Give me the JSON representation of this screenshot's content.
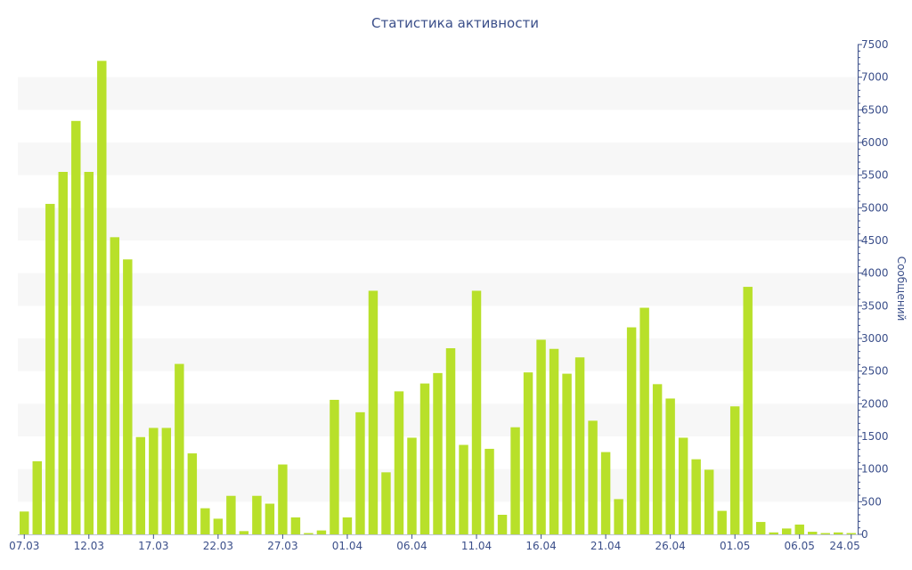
{
  "chart_data": {
    "type": "bar",
    "title": "Статистика активности",
    "xlabel": "",
    "ylabel": "Сообщений",
    "ylim": [
      0,
      7500
    ],
    "yticks": [
      0,
      500,
      1000,
      1500,
      2000,
      2500,
      3000,
      3500,
      4000,
      4500,
      5000,
      5500,
      6000,
      6500,
      7000,
      7500
    ],
    "y_axis_side": "right",
    "grid": "alternating horizontal bands",
    "bar_color": "#b8e02a",
    "band_color": "#f7f7f7",
    "text_color": "#3b4f8a",
    "x_tick_labels": [
      "07.03",
      "12.03",
      "17.03",
      "22.03",
      "27.03",
      "01.04",
      "06.04",
      "11.04",
      "16.04",
      "21.04",
      "26.04",
      "01.05",
      "06.05",
      "24.05"
    ],
    "categories": [
      "07.03",
      "08.03",
      "09.03",
      "10.03",
      "11.03",
      "12.03",
      "13.03",
      "14.03",
      "15.03",
      "16.03",
      "17.03",
      "18.03",
      "19.03",
      "20.03",
      "21.03",
      "22.03",
      "23.03",
      "24.03",
      "25.03",
      "26.03",
      "27.03",
      "28.03",
      "29.03",
      "30.03",
      "31.03",
      "01.04",
      "02.04",
      "03.04",
      "04.04",
      "05.04",
      "06.04",
      "07.04",
      "08.04",
      "09.04",
      "10.04",
      "11.04",
      "12.04",
      "13.04",
      "14.04",
      "15.04",
      "16.04",
      "17.04",
      "18.04",
      "19.04",
      "20.04",
      "21.04",
      "22.04",
      "23.04",
      "24.04",
      "25.04",
      "26.04",
      "27.04",
      "28.04",
      "29.04",
      "30.04",
      "01.05",
      "02.05",
      "03.05",
      "04.05",
      "05.05",
      "06.05",
      "07.05",
      "08.05",
      "09.05",
      "24.05"
    ],
    "values": [
      350,
      1120,
      5060,
      5550,
      6330,
      5550,
      7250,
      4550,
      4210,
      1490,
      1630,
      1630,
      2610,
      1240,
      400,
      240,
      590,
      50,
      590,
      470,
      1070,
      260,
      20,
      60,
      2060,
      260,
      1870,
      3730,
      950,
      2190,
      1480,
      2310,
      2470,
      2850,
      1370,
      3730,
      1310,
      300,
      1640,
      2480,
      2980,
      2840,
      2460,
      2710,
      1740,
      1260,
      540,
      3170,
      3470,
      2300,
      2080,
      1480,
      1150,
      990,
      360,
      1960,
      3790,
      190,
      30,
      90,
      150,
      40,
      20,
      30,
      20
    ]
  }
}
